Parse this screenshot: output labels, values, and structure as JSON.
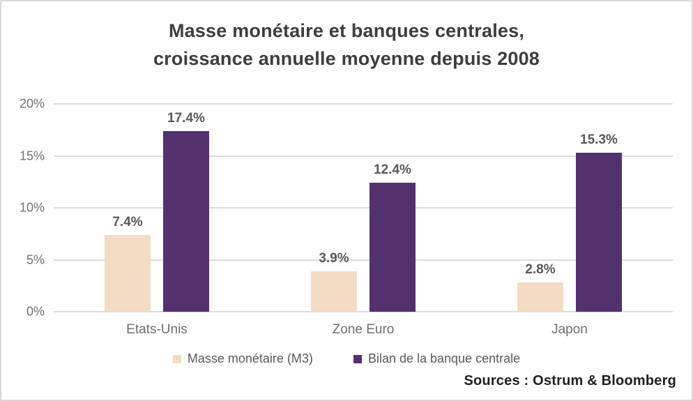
{
  "frame": {
    "background": "#ffffff",
    "border_color": "#d8d8d8"
  },
  "chart_data": {
    "type": "bar",
    "title": "Masse monétaire et banques centrales, croissance annuelle moyenne depuis 2008",
    "title_lines": [
      "Masse monétaire et banques centrales,",
      "croissance annuelle moyenne depuis 2008"
    ],
    "categories": [
      "Etats-Unis",
      "Zone Euro",
      "Japon"
    ],
    "series": [
      {
        "name": "Masse monétaire (M3)",
        "color": "#f3dcc3",
        "values": [
          7.4,
          3.9,
          2.8
        ],
        "labels": [
          "7.4%",
          "3.9%",
          "2.8%"
        ]
      },
      {
        "name": "Bilan de la banque centrale",
        "color": "#53316f",
        "values": [
          17.4,
          12.4,
          15.3
        ],
        "labels": [
          "17.4%",
          "12.4%",
          "15.3%"
        ]
      }
    ],
    "ylim": [
      0,
      20
    ],
    "yticks": [
      0,
      5,
      10,
      15,
      20
    ],
    "ytick_labels": [
      "0%",
      "5%",
      "10%",
      "15%",
      "20%"
    ],
    "grid": "horizontal",
    "gridline_color": "#dcdcdc",
    "legend_position": "bottom",
    "source": "Sources : Ostrum & Bloomberg"
  },
  "text_colors": {
    "title": "#3d3d3d",
    "axis_tick": "#737373",
    "value_label": "#595959",
    "category_label": "#6e6e6e",
    "legend_label": "#595959",
    "source": "#1f1f1f"
  }
}
